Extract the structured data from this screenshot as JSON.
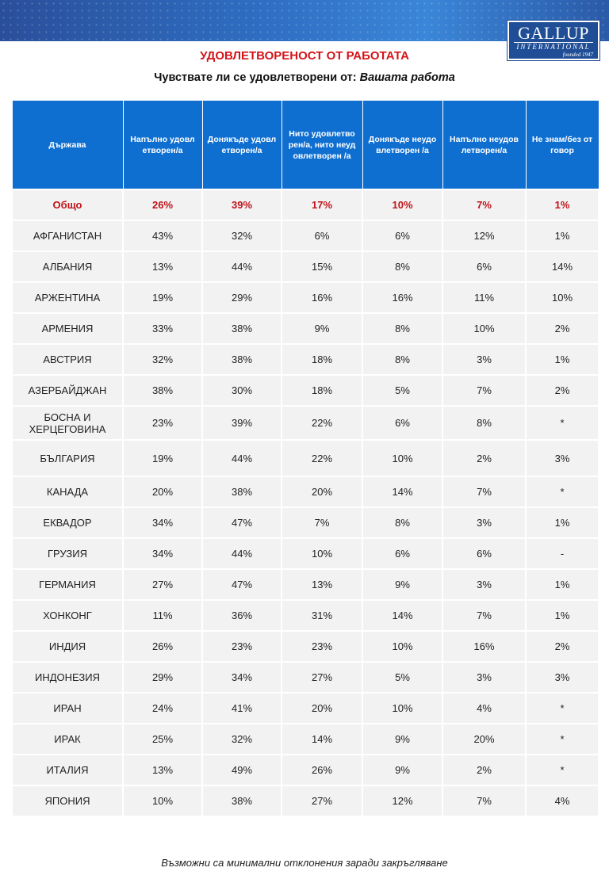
{
  "logo": {
    "name": "GALLUP",
    "tagline": "INTERNATIONAL",
    "founded": "founded 1947"
  },
  "header": {
    "title": "УДОВЛЕТВОРЕНОСТ ОТ РАБОТАТА",
    "subtitle_lead": "Чувствате ли се удовлетворени от:",
    "subtitle_emphasis": "Вашата работа"
  },
  "table": {
    "columns": [
      "Държава",
      "Напълно удовлетворен/а",
      "Донякъде удовлетворен/а",
      "Нито удовлетворен/а, нито неудовлетворен /а",
      "Донякъде неудовлетворен /а",
      "Напълно неудовлетворен/а",
      "Не знам/без отговор"
    ],
    "rows": [
      [
        "Общо",
        "26%",
        "39%",
        "17%",
        "10%",
        "7%",
        "1%"
      ],
      [
        "АФГАНИСТАН",
        "43%",
        "32%",
        "6%",
        "6%",
        "12%",
        "1%"
      ],
      [
        "АЛБАНИЯ",
        "13%",
        "44%",
        "15%",
        "8%",
        "6%",
        "14%"
      ],
      [
        "АРЖЕНТИНА",
        "19%",
        "29%",
        "16%",
        "16%",
        "11%",
        "10%"
      ],
      [
        "АРМЕНИЯ",
        "33%",
        "38%",
        "9%",
        "8%",
        "10%",
        "2%"
      ],
      [
        "АВСТРИЯ",
        "32%",
        "38%",
        "18%",
        "8%",
        "3%",
        "1%"
      ],
      [
        "АЗЕРБАЙДЖАН",
        "38%",
        "30%",
        "18%",
        "5%",
        "7%",
        "2%"
      ],
      [
        "БОСНА И ХЕРЦЕГОВИНА",
        "23%",
        "39%",
        "22%",
        "6%",
        "8%",
        "*"
      ],
      [
        "БЪЛГАРИЯ",
        "19%",
        "44%",
        "22%",
        "10%",
        "2%",
        "3%"
      ],
      [
        "КАНАДА",
        "20%",
        "38%",
        "20%",
        "14%",
        "7%",
        "*"
      ],
      [
        "ЕКВАДОР",
        "34%",
        "47%",
        "7%",
        "8%",
        "3%",
        "1%"
      ],
      [
        "ГРУЗИЯ",
        "34%",
        "44%",
        "10%",
        "6%",
        "6%",
        "-"
      ],
      [
        "ГЕРМАНИЯ",
        "27%",
        "47%",
        "13%",
        "9%",
        "3%",
        "1%"
      ],
      [
        "ХОНКОНГ",
        "11%",
        "36%",
        "31%",
        "14%",
        "7%",
        "1%"
      ],
      [
        "ИНДИЯ",
        "26%",
        "23%",
        "23%",
        "10%",
        "16%",
        "2%"
      ],
      [
        "ИНДОНЕЗИЯ",
        "29%",
        "34%",
        "27%",
        "5%",
        "3%",
        "3%"
      ],
      [
        "ИРАН",
        "24%",
        "41%",
        "20%",
        "10%",
        "4%",
        "*"
      ],
      [
        "ИРАК",
        "25%",
        "32%",
        "14%",
        "9%",
        "20%",
        "*"
      ],
      [
        "ИТАЛИЯ",
        "13%",
        "49%",
        "26%",
        "9%",
        "2%",
        "*"
      ],
      [
        "ЯПОНИЯ",
        "10%",
        "38%",
        "27%",
        "12%",
        "7%",
        "4%"
      ]
    ]
  },
  "footer": {
    "note": "Възможни са минимални отклонения заради закръгляване"
  }
}
